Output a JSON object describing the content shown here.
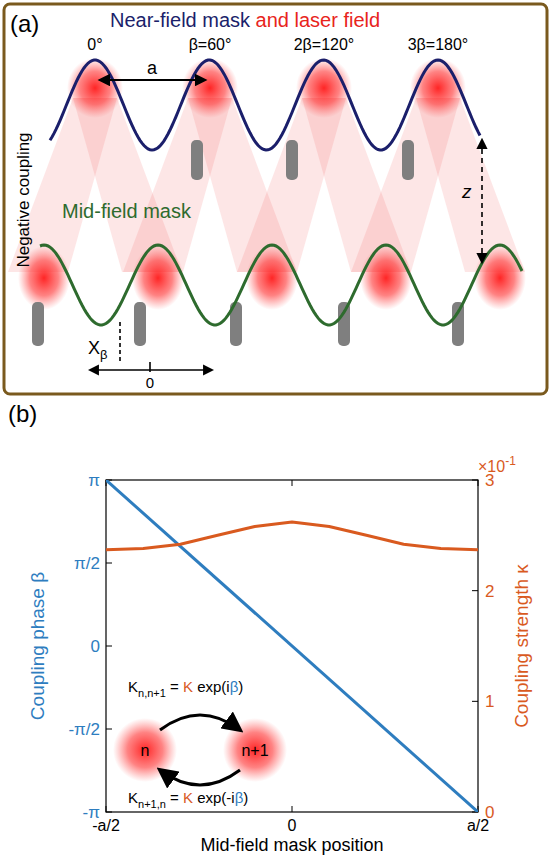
{
  "panel_a": {
    "label": "(a)",
    "title_parts": [
      "Near-field mask",
      " and laser field"
    ],
    "angle_labels": [
      "0°",
      "β=60°",
      "2β=120°",
      "3β=180°"
    ],
    "period_label": "a",
    "side_label": "Negative coupling",
    "mid_mask_label": "Mid-field mask",
    "axis_label": "z",
    "offset_label": {
      "symbol": "X",
      "subscript": "β"
    },
    "origin_label": "0"
  },
  "panel_b": {
    "label": "(b)"
  },
  "chart_data": {
    "type": "line",
    "x_label": "Mid-field mask position",
    "y_label": "Coupling phase β",
    "y2_label": "Coupling strength κ",
    "y2_scale_label": {
      "base": "×10",
      "exponent": "-1"
    },
    "xlim": [
      -0.5,
      0.5
    ],
    "xticks": [
      {
        "value": -0.5,
        "label": "-a/2"
      },
      0,
      {
        "value": 0.5,
        "label": "a/2"
      }
    ],
    "ylim": [
      -3.1416,
      3.1416
    ],
    "yticks": [
      {
        "value": -3.1416,
        "label": "-π"
      },
      {
        "value": -1.5708,
        "label": "-π/2"
      },
      0,
      {
        "value": 1.5708,
        "label": "π/2"
      },
      {
        "value": 3.1416,
        "label": "π"
      }
    ],
    "y2lim": [
      0,
      3
    ],
    "y2ticks": [
      0,
      1,
      2,
      3
    ],
    "grid": false,
    "series": [
      {
        "color": "#2e7dbf",
        "x": [
          -0.5,
          0.5
        ],
        "values": [
          3.1416,
          -3.1416
        ]
      },
      {
        "color": "#d95a1f",
        "axis": "y2",
        "x": [
          -0.5,
          -0.4,
          -0.3,
          -0.2,
          -0.1,
          0,
          0.1,
          0.2,
          0.3,
          0.4,
          0.5
        ],
        "values": [
          2.37,
          2.38,
          2.42,
          2.5,
          2.58,
          2.62,
          2.58,
          2.5,
          2.42,
          2.38,
          2.37
        ]
      }
    ],
    "annotations": {
      "nodes": [
        "n",
        "n+1"
      ],
      "forward": {
        "symbol": "K",
        "subscript": "n,n+1",
        "rhs": [
          " = ",
          "K",
          " exp(i",
          "β",
          ")"
        ]
      },
      "backward": {
        "symbol": "K",
        "subscript": "n+1,n",
        "rhs": [
          " = ",
          "K",
          " exp(-i",
          "β",
          ")"
        ]
      }
    }
  }
}
